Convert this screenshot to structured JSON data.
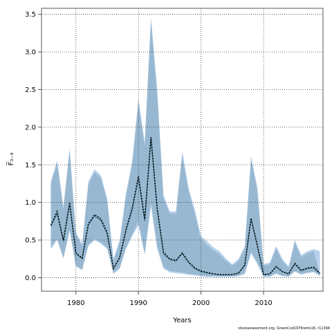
{
  "chart_data": {
    "type": "area",
    "title": "",
    "xlabel": "Years",
    "ylabel": "F̅₀₋₉",
    "xlim": [
      1974.5,
      2019.5
    ],
    "ylim": [
      -0.18,
      3.58
    ],
    "xticks": [
      1980,
      1990,
      2000,
      2010
    ],
    "yticks": [
      0.0,
      0.5,
      1.0,
      1.5,
      2.0,
      2.5,
      3.0,
      3.5
    ],
    "ytick_labels": [
      "0.0",
      "0.5",
      "1.0",
      "1.5",
      "2.0",
      "2.5",
      "3.0",
      "3.5"
    ],
    "grid": true,
    "credit": "stockassessment.org, GreenCod1976retro18, r11394",
    "x": [
      1976,
      1977,
      1978,
      1979,
      1980,
      1981,
      1982,
      1983,
      1984,
      1985,
      1986,
      1987,
      1988,
      1989,
      1990,
      1991,
      1992,
      1993,
      1994,
      1995,
      1996,
      1997,
      1998,
      1999,
      2000,
      2001,
      2002,
      2003,
      2004,
      2005,
      2006,
      2007,
      2008,
      2009,
      2010,
      2011,
      2012,
      2013,
      2014,
      2015,
      2016,
      2017,
      2018,
      2019
    ],
    "series": [
      {
        "kind": "band-1",
        "color": "#a8c8e8",
        "upper": [
          1.28,
          1.56,
          0.95,
          1.72,
          0.6,
          0.45,
          1.28,
          1.44,
          1.36,
          1.05,
          0.25,
          0.5,
          1.12,
          1.55,
          2.38,
          1.8,
          3.45,
          2.5,
          1.1,
          0.88,
          0.88,
          1.68,
          1.2,
          0.9,
          0.55,
          0.48,
          0.4,
          0.35,
          0.25,
          0.18,
          0.25,
          0.42,
          1.62,
          1.2,
          0.18,
          0.2,
          0.42,
          0.25,
          0.15,
          0.5,
          0.3,
          0.35,
          0.38,
          0.35
        ],
        "lower": [
          0.38,
          0.5,
          0.25,
          0.62,
          0.15,
          0.1,
          0.42,
          0.5,
          0.45,
          0.38,
          0.05,
          0.12,
          0.38,
          0.55,
          0.7,
          0.3,
          0.95,
          0.38,
          0.12,
          0.07,
          0.06,
          0.05,
          0.04,
          0.03,
          0.02,
          0.01,
          0.01,
          0.01,
          0.01,
          0.01,
          0.02,
          0.05,
          0.32,
          0.18,
          0.01,
          0.01,
          0.05,
          0.02,
          0.01,
          0.08,
          0.04,
          0.06,
          0.07,
          0.06
        ]
      },
      {
        "kind": "band-2",
        "color": "#8fb0c8",
        "upper": [
          1.24,
          1.52,
          0.9,
          1.68,
          0.57,
          0.42,
          1.24,
          1.4,
          1.32,
          1.02,
          0.22,
          0.47,
          1.08,
          1.5,
          2.3,
          1.74,
          3.42,
          2.42,
          1.06,
          0.85,
          0.85,
          1.62,
          1.15,
          0.86,
          0.51,
          0.43,
          0.36,
          0.31,
          0.22,
          0.16,
          0.22,
          0.39,
          1.57,
          1.16,
          0.16,
          0.18,
          0.39,
          0.22,
          0.13,
          0.47,
          0.27,
          0.32,
          0.35,
          0.05
        ],
        "lower": [
          0.4,
          0.52,
          0.27,
          0.64,
          0.16,
          0.11,
          0.44,
          0.52,
          0.47,
          0.4,
          0.06,
          0.13,
          0.4,
          0.58,
          0.75,
          0.32,
          1.0,
          0.42,
          0.14,
          0.09,
          0.08,
          0.07,
          0.05,
          0.04,
          0.03,
          0.02,
          0.02,
          0.02,
          0.02,
          0.02,
          0.03,
          0.06,
          0.35,
          0.2,
          0.02,
          0.02,
          0.06,
          0.03,
          0.02,
          0.09,
          0.05,
          0.07,
          0.08,
          0.02
        ]
      },
      {
        "kind": "estimate",
        "color": "#3a6f86",
        "values": [
          0.68,
          0.85,
          0.48,
          0.97,
          0.32,
          0.25,
          0.7,
          0.82,
          0.76,
          0.58,
          0.12,
          0.26,
          0.62,
          0.9,
          1.32,
          0.75,
          1.85,
          0.9,
          0.32,
          0.24,
          0.22,
          0.32,
          0.2,
          0.12,
          0.08,
          0.06,
          0.05,
          0.04,
          0.04,
          0.04,
          0.06,
          0.16,
          0.78,
          0.42,
          0.04,
          0.05,
          0.14,
          0.08,
          0.05,
          0.18,
          0.09,
          0.12,
          0.13,
          0.05
        ]
      },
      {
        "kind": "estimate",
        "color": "#000000",
        "values": [
          0.7,
          0.88,
          0.5,
          1.0,
          0.33,
          0.26,
          0.72,
          0.84,
          0.78,
          0.6,
          0.12,
          0.27,
          0.64,
          0.93,
          1.35,
          0.78,
          1.87,
          0.92,
          0.34,
          0.25,
          0.23,
          0.33,
          0.21,
          0.13,
          0.09,
          0.07,
          0.05,
          0.04,
          0.04,
          0.04,
          0.06,
          0.17,
          0.79,
          0.43,
          0.04,
          0.05,
          0.15,
          0.08,
          0.05,
          0.19,
          0.1,
          0.13,
          0.14,
          0.06
        ]
      }
    ]
  }
}
